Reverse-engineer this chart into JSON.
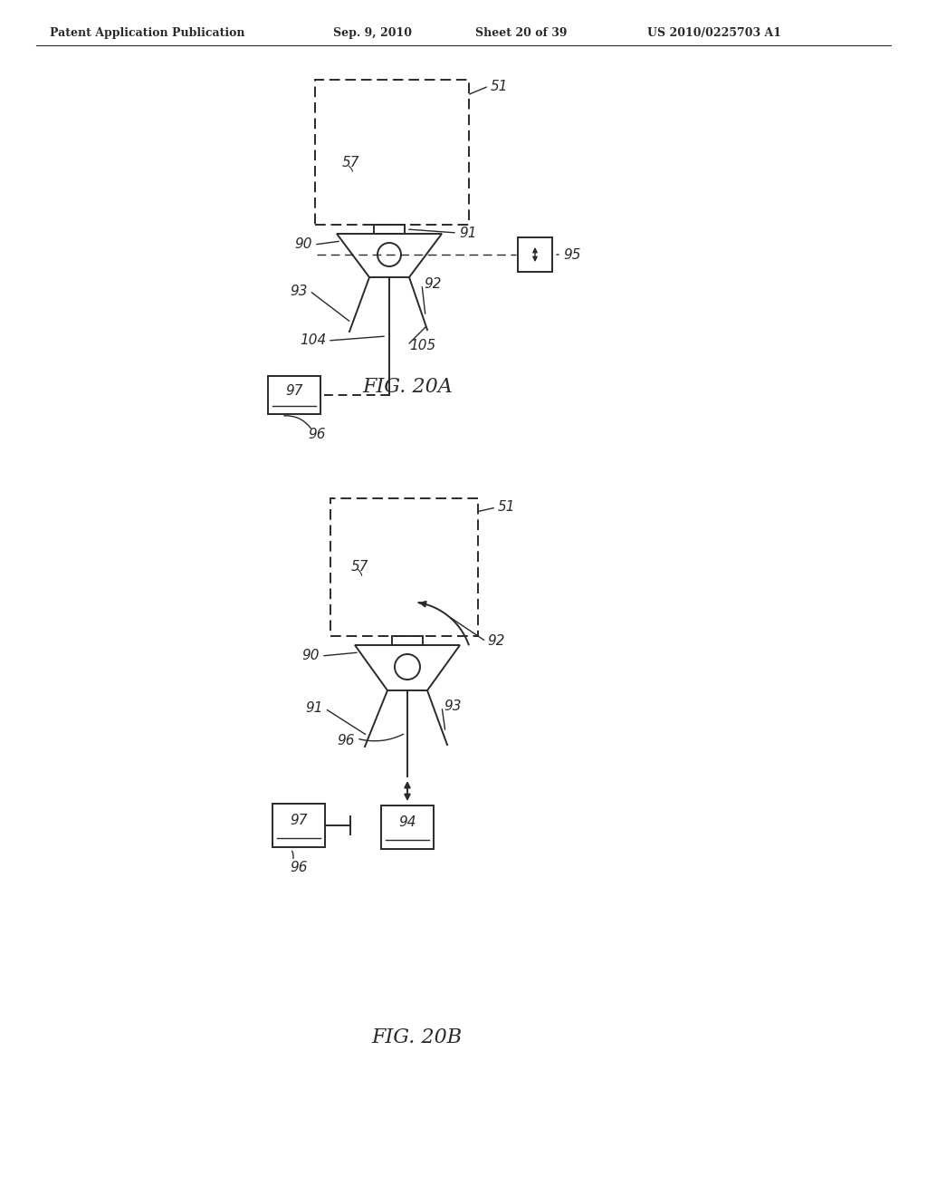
{
  "bg_color": "#ffffff",
  "header_text": "Patent Application Publication",
  "header_date": "Sep. 9, 2010",
  "header_sheet": "Sheet 20 of 39",
  "header_patent": "US 2010/0225703 A1",
  "fig_label_a": "FIG. 20A",
  "fig_label_b": "FIG. 20B",
  "line_color": "#2a2a2a",
  "line_width": 1.4,
  "thin_line": 1.0,
  "dash_pattern": [
    6,
    3
  ]
}
